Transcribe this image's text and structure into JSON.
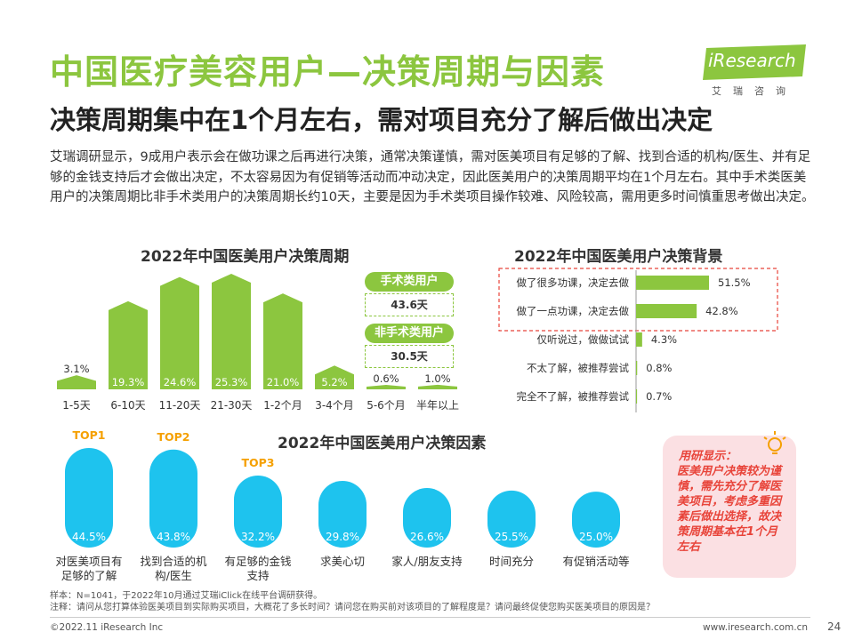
{
  "header": {
    "title": "中国医疗美容用户—决策周期与因素",
    "subtitle": "决策周期集中在1个月左右，需对项目充分了解后做出决定",
    "logo_text": "iResearch",
    "logo_sub": "艾瑞咨询"
  },
  "intro": "艾瑞调研显示，9成用户表示会在做功课之后再进行决策，通常决策谨慎，需对医美项目有足够的了解、找到合适的机构/医生、并有足够的金钱支持后才会做出决定，不太容易因为有促销等活动而冲动决定，因此医美用户的决策周期平均在1个月左右。其中手术类医美用户的决策周期比非手术类用户的决策周期长约10天，主要是因为手术类项目操作较难、风险较高，需用更多时间慎重思考做出决定。",
  "colors": {
    "green": "#8cc63f",
    "cyan": "#1ec3ee",
    "red": "#e8443a",
    "orange": "#f5a000"
  },
  "surgery": {
    "label1": "手术类用户",
    "value1": "43.6天",
    "label2": "非手术类用户",
    "value2": "30.5天"
  },
  "chart_data": [
    {
      "type": "bar",
      "title": "2022年中国医美用户决策周期",
      "categories": [
        "1-5天",
        "6-10天",
        "11-20天",
        "21-30天",
        "1-2个月",
        "3-4个月",
        "5-6个月",
        "半年以上"
      ],
      "values": [
        3.1,
        19.3,
        24.6,
        25.3,
        21.0,
        5.2,
        0.6,
        1.0
      ],
      "labels": [
        "3.1%",
        "19.3%",
        "24.6%",
        "25.3%",
        "21.0%",
        "5.2%",
        "0.6%",
        "1.0%"
      ],
      "unit": "%"
    },
    {
      "type": "bar",
      "orientation": "horizontal",
      "title": "2022年中国医美用户决策背景",
      "categories": [
        "做了很多功课，决定去做",
        "做了一点功课，决定去做",
        "仅听说过，做做试试",
        "不太了解，被推荐尝试",
        "完全不了解，被推荐尝试"
      ],
      "values": [
        51.5,
        42.8,
        4.3,
        0.8,
        0.7
      ],
      "labels": [
        "51.5%",
        "42.8%",
        "4.3%",
        "0.8%",
        "0.7%"
      ],
      "unit": "%"
    },
    {
      "type": "bar",
      "title": "2022年中国医美用户决策因素",
      "categories": [
        "对医美项目有足够的了解",
        "找到合适的机构/医生",
        "有足够的金钱支持",
        "求美心切",
        "家人/朋友支持",
        "时间充分",
        "有促销活动等"
      ],
      "category_lines": [
        [
          "对医美项目有",
          "足够的了解"
        ],
        [
          "找到合适的机",
          "构/医生"
        ],
        [
          "有足够的金钱",
          "支持"
        ],
        [
          "求美心切"
        ],
        [
          "家人/朋友支持"
        ],
        [
          "时间充分"
        ],
        [
          "有促销活动等"
        ]
      ],
      "values": [
        44.5,
        43.8,
        32.2,
        29.8,
        26.6,
        25.5,
        25.0
      ],
      "labels": [
        "44.5%",
        "43.8%",
        "32.2%",
        "29.8%",
        "26.6%",
        "25.5%",
        "25.0%"
      ],
      "top_labels": [
        "TOP1",
        "TOP2",
        "TOP3"
      ],
      "unit": "%"
    }
  ],
  "note": {
    "title": "用研显示：",
    "body": "医美用户决策较为谨慎，需先充分了解医美项目，考虑多重因素后做出选择，故决策周期基本在1个月左右"
  },
  "footer": {
    "sample": "样本：N=1041，于2022年10月通过艾瑞iClick在线平台调研获得。",
    "note": "注释：请问从您打算体验医美项目到实际购买项目，大概花了多长时间？请问您在购买前对该项目的了解程度是？请问最终促使您购买医美项目的原因是？",
    "copyright": "©2022.11 iResearch Inc",
    "website": "www.iresearch.com.cn",
    "page": "24"
  }
}
